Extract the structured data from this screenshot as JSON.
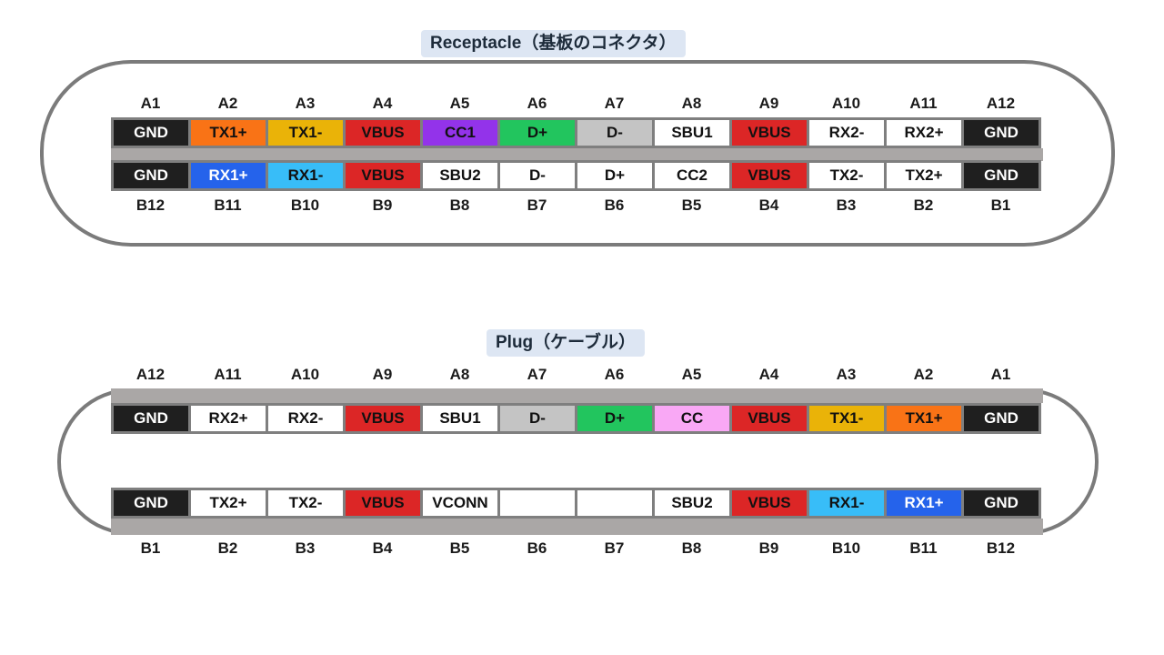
{
  "colors": {
    "GND": "#1f1f1f",
    "TX1+": "#f97316",
    "TX1-": "#eab308",
    "VBUS": "#dc2626",
    "CC1": "#9333ea",
    "D+": "#22c55e",
    "D-": "#c4c4c4",
    "RX1+": "#2563eb",
    "RX1-": "#38bdf8",
    "CC": "#f9a8f5",
    "white": "#ffffff"
  },
  "receptacle": {
    "title": "Receptacle（基板のコネクタ）",
    "top_labels": [
      "A1",
      "A2",
      "A3",
      "A4",
      "A5",
      "A6",
      "A7",
      "A8",
      "A9",
      "A10",
      "A11",
      "A12"
    ],
    "top_pins": [
      {
        "label": "GND",
        "color": "#1f1f1f",
        "text_color": "#ffffff"
      },
      {
        "label": "TX1+",
        "color": "#f97316",
        "text_color": "#111111"
      },
      {
        "label": "TX1-",
        "color": "#eab308",
        "text_color": "#111111"
      },
      {
        "label": "VBUS",
        "color": "#dc2626",
        "text_color": "#111111"
      },
      {
        "label": "CC1",
        "color": "#9333ea",
        "text_color": "#111111"
      },
      {
        "label": "D+",
        "color": "#22c55e",
        "text_color": "#111111"
      },
      {
        "label": "D-",
        "color": "#c4c4c4",
        "text_color": "#111111"
      },
      {
        "label": "SBU1",
        "color": "#ffffff",
        "text_color": "#111111"
      },
      {
        "label": "VBUS",
        "color": "#dc2626",
        "text_color": "#111111"
      },
      {
        "label": "RX2-",
        "color": "#ffffff",
        "text_color": "#111111"
      },
      {
        "label": "RX2+",
        "color": "#ffffff",
        "text_color": "#111111"
      },
      {
        "label": "GND",
        "color": "#1f1f1f",
        "text_color": "#ffffff"
      }
    ],
    "bottom_pins": [
      {
        "label": "GND",
        "color": "#1f1f1f",
        "text_color": "#ffffff"
      },
      {
        "label": "RX1+",
        "color": "#2563eb",
        "text_color": "#ffffff"
      },
      {
        "label": "RX1-",
        "color": "#38bdf8",
        "text_color": "#111111"
      },
      {
        "label": "VBUS",
        "color": "#dc2626",
        "text_color": "#111111"
      },
      {
        "label": "SBU2",
        "color": "#ffffff",
        "text_color": "#111111"
      },
      {
        "label": "D-",
        "color": "#ffffff",
        "text_color": "#111111"
      },
      {
        "label": "D+",
        "color": "#ffffff",
        "text_color": "#111111"
      },
      {
        "label": "CC2",
        "color": "#ffffff",
        "text_color": "#111111"
      },
      {
        "label": "VBUS",
        "color": "#dc2626",
        "text_color": "#111111"
      },
      {
        "label": "TX2-",
        "color": "#ffffff",
        "text_color": "#111111"
      },
      {
        "label": "TX2+",
        "color": "#ffffff",
        "text_color": "#111111"
      },
      {
        "label": "GND",
        "color": "#1f1f1f",
        "text_color": "#ffffff"
      }
    ],
    "bottom_labels": [
      "B12",
      "B11",
      "B10",
      "B9",
      "B8",
      "B7",
      "B6",
      "B5",
      "B4",
      "B3",
      "B2",
      "B1"
    ]
  },
  "plug": {
    "title": "Plug（ケーブル）",
    "top_labels": [
      "A12",
      "A11",
      "A10",
      "A9",
      "A8",
      "A7",
      "A6",
      "A5",
      "A4",
      "A3",
      "A2",
      "A1"
    ],
    "top_pins": [
      {
        "label": "GND",
        "color": "#1f1f1f",
        "text_color": "#ffffff"
      },
      {
        "label": "RX2+",
        "color": "#ffffff",
        "text_color": "#111111"
      },
      {
        "label": "RX2-",
        "color": "#ffffff",
        "text_color": "#111111"
      },
      {
        "label": "VBUS",
        "color": "#dc2626",
        "text_color": "#111111"
      },
      {
        "label": "SBU1",
        "color": "#ffffff",
        "text_color": "#111111"
      },
      {
        "label": "D-",
        "color": "#c4c4c4",
        "text_color": "#111111"
      },
      {
        "label": "D+",
        "color": "#22c55e",
        "text_color": "#111111"
      },
      {
        "label": "CC",
        "color": "#f9a8f5",
        "text_color": "#111111"
      },
      {
        "label": "VBUS",
        "color": "#dc2626",
        "text_color": "#111111"
      },
      {
        "label": "TX1-",
        "color": "#eab308",
        "text_color": "#111111"
      },
      {
        "label": "TX1+",
        "color": "#f97316",
        "text_color": "#111111"
      },
      {
        "label": "GND",
        "color": "#1f1f1f",
        "text_color": "#ffffff"
      }
    ],
    "bottom_pins": [
      {
        "label": "GND",
        "color": "#1f1f1f",
        "text_color": "#ffffff"
      },
      {
        "label": "TX2+",
        "color": "#ffffff",
        "text_color": "#111111"
      },
      {
        "label": "TX2-",
        "color": "#ffffff",
        "text_color": "#111111"
      },
      {
        "label": "VBUS",
        "color": "#dc2626",
        "text_color": "#111111"
      },
      {
        "label": "VCONN",
        "color": "#ffffff",
        "text_color": "#111111"
      },
      {
        "label": "",
        "color": "#ffffff",
        "text_color": "#111111"
      },
      {
        "label": "",
        "color": "#ffffff",
        "text_color": "#111111"
      },
      {
        "label": "SBU2",
        "color": "#ffffff",
        "text_color": "#111111"
      },
      {
        "label": "VBUS",
        "color": "#dc2626",
        "text_color": "#111111"
      },
      {
        "label": "RX1-",
        "color": "#38bdf8",
        "text_color": "#111111"
      },
      {
        "label": "RX1+",
        "color": "#2563eb",
        "text_color": "#ffffff"
      },
      {
        "label": "GND",
        "color": "#1f1f1f",
        "text_color": "#ffffff"
      }
    ],
    "bottom_labels": [
      "B1",
      "B2",
      "B3",
      "B4",
      "B5",
      "B6",
      "B7",
      "B8",
      "B9",
      "B10",
      "B11",
      "B12"
    ]
  }
}
